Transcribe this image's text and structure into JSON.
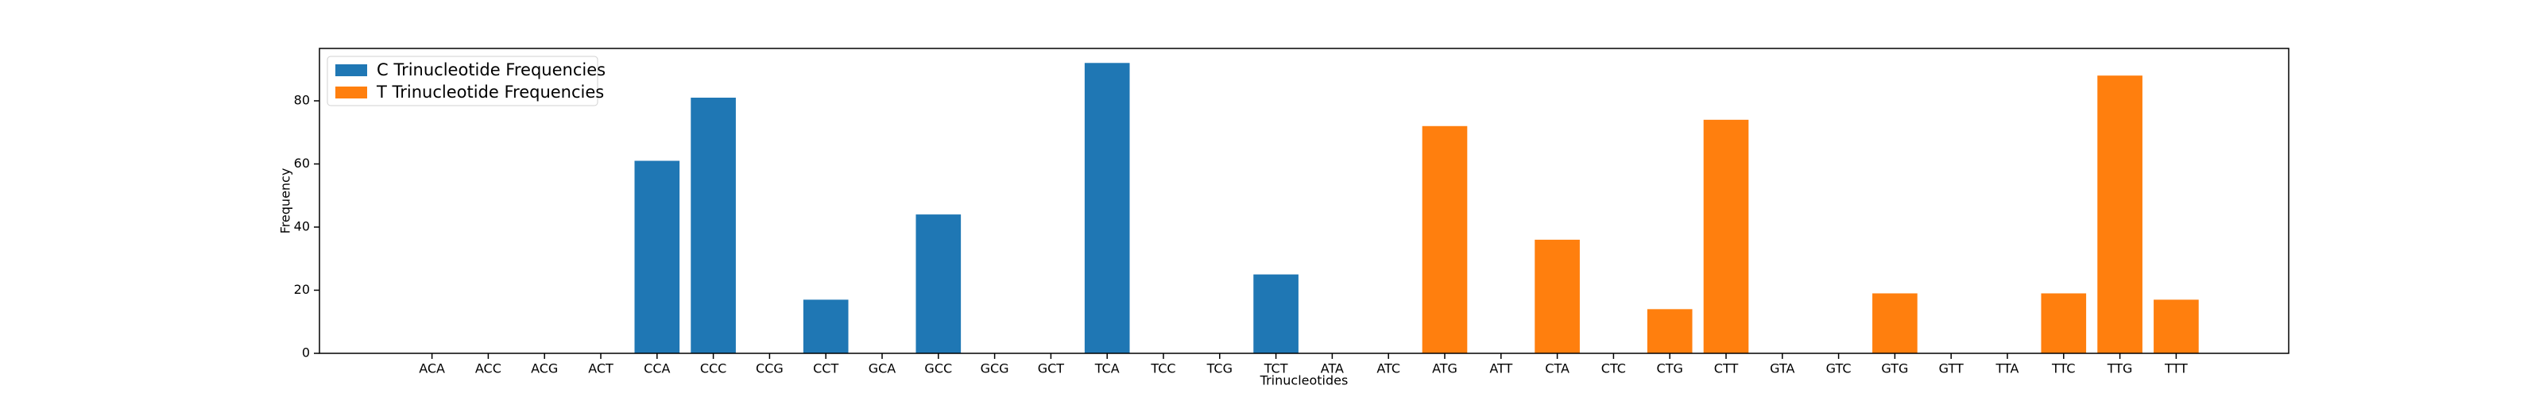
{
  "chart_data": {
    "type": "bar",
    "xlabel": "Trinucleotides",
    "ylabel": "Frequency",
    "categories": [
      "ACA",
      "ACC",
      "ACG",
      "ACT",
      "CCA",
      "CCC",
      "CCG",
      "CCT",
      "GCA",
      "GCC",
      "GCG",
      "GCT",
      "TCA",
      "TCC",
      "TCG",
      "TCT",
      "ATA",
      "ATC",
      "ATG",
      "ATT",
      "CTA",
      "CTC",
      "CTG",
      "CTT",
      "GTA",
      "GTC",
      "GTG",
      "GTT",
      "TTA",
      "TTC",
      "TTG",
      "TTT"
    ],
    "series": [
      {
        "name": "C Trinucleotide Frequencies",
        "color": "#1f77b4",
        "values": [
          0,
          0,
          0,
          0,
          61,
          81,
          0,
          17,
          0,
          44,
          0,
          0,
          92,
          0,
          0,
          25,
          null,
          null,
          null,
          null,
          null,
          null,
          null,
          null,
          null,
          null,
          null,
          null,
          null,
          null,
          null,
          null
        ]
      },
      {
        "name": "T Trinucleotide Frequencies",
        "color": "#ff7f0e",
        "values": [
          null,
          null,
          null,
          null,
          null,
          null,
          null,
          null,
          null,
          null,
          null,
          null,
          null,
          null,
          null,
          null,
          0,
          0,
          72,
          0,
          36,
          0,
          14,
          74,
          0,
          0,
          19,
          0,
          0,
          19,
          88,
          17
        ]
      }
    ],
    "ylim": [
      0,
      96.6
    ],
    "yticks": [
      0,
      20,
      40,
      60,
      80
    ],
    "legend": "upper left"
  }
}
